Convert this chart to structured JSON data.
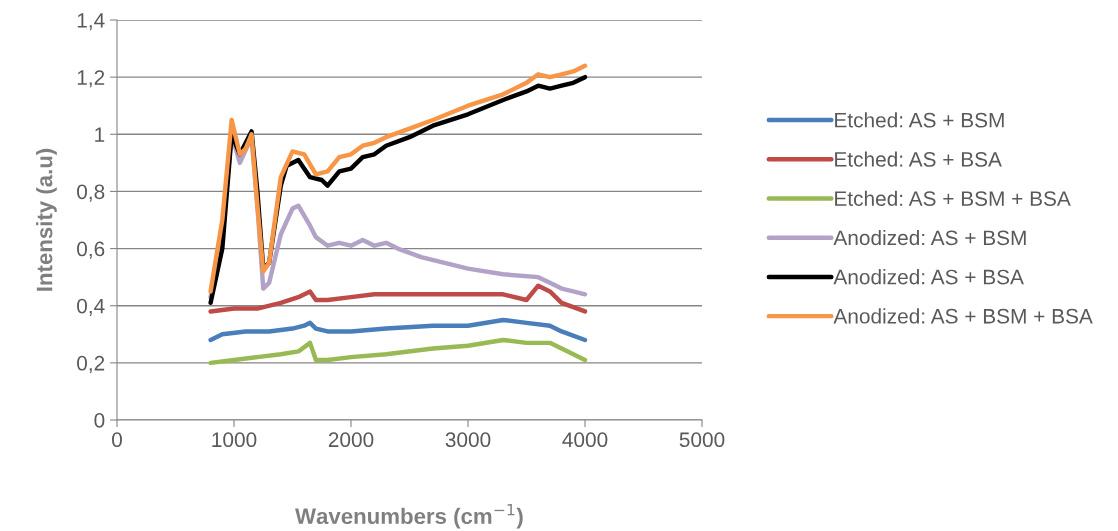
{
  "chart_data": {
    "type": "line",
    "xlabel": "Wavenumbers (cm$^{−1}$)",
    "ylabel": "Intensity (a.u)",
    "xlim": [
      0,
      5000
    ],
    "xticks": [
      0,
      1000,
      2000,
      3000,
      4000,
      5000
    ],
    "ylim": [
      0,
      1.4
    ],
    "yticks": [
      {
        "value": 0,
        "label": "0"
      },
      {
        "value": 0.2,
        "label": "0,2"
      },
      {
        "value": 0.4,
        "label": "0,4"
      },
      {
        "value": 0.6,
        "label": "0,6"
      },
      {
        "value": 0.8,
        "label": "0,8"
      },
      {
        "value": 1,
        "label": "1"
      },
      {
        "value": 1.2,
        "label": "1,2"
      },
      {
        "value": 1.4,
        "label": "1,4"
      }
    ],
    "grid": "y",
    "legend": "right",
    "marker": "none",
    "line_style": "solid",
    "series": [
      {
        "name": "Etched: AS + BSM",
        "color": "#4a7ebb",
        "x": [
          800,
          900,
          1100,
          1300,
          1500,
          1600,
          1650,
          1700,
          1800,
          2000,
          2300,
          2700,
          3000,
          3300,
          3500,
          3700,
          3800,
          4000
        ],
        "values": [
          0.28,
          0.3,
          0.31,
          0.31,
          0.32,
          0.33,
          0.34,
          0.32,
          0.31,
          0.31,
          0.32,
          0.33,
          0.33,
          0.35,
          0.34,
          0.33,
          0.31,
          0.28
        ]
      },
      {
        "name": "Etched: AS + BSA",
        "color": "#be4b48",
        "x": [
          800,
          1000,
          1200,
          1400,
          1550,
          1650,
          1700,
          1800,
          2000,
          2200,
          2500,
          3000,
          3300,
          3500,
          3600,
          3700,
          3800,
          4000
        ],
        "values": [
          0.38,
          0.39,
          0.39,
          0.41,
          0.43,
          0.45,
          0.42,
          0.42,
          0.43,
          0.44,
          0.44,
          0.44,
          0.44,
          0.42,
          0.47,
          0.45,
          0.41,
          0.38
        ]
      },
      {
        "name": "Etched: AS + BSM + BSA",
        "color": "#98b954",
        "x": [
          800,
          1000,
          1200,
          1400,
          1550,
          1650,
          1700,
          1800,
          2000,
          2300,
          2700,
          3000,
          3300,
          3500,
          3700,
          3800,
          4000
        ],
        "values": [
          0.2,
          0.21,
          0.22,
          0.23,
          0.24,
          0.27,
          0.21,
          0.21,
          0.22,
          0.23,
          0.25,
          0.26,
          0.28,
          0.27,
          0.27,
          0.25,
          0.21
        ]
      },
      {
        "name": "Anodized: AS + BSM",
        "color": "#b3a2c7",
        "x": [
          800,
          900,
          980,
          1050,
          1150,
          1200,
          1250,
          1300,
          1400,
          1500,
          1550,
          1650,
          1700,
          1800,
          1900,
          2000,
          2100,
          2200,
          2300,
          2400,
          2600,
          2800,
          3000,
          3300,
          3600,
          3700,
          3800,
          3900,
          4000
        ],
        "values": [
          0.43,
          0.65,
          1.0,
          0.9,
          0.99,
          0.75,
          0.46,
          0.48,
          0.65,
          0.74,
          0.75,
          0.68,
          0.64,
          0.61,
          0.62,
          0.61,
          0.63,
          0.61,
          0.62,
          0.6,
          0.57,
          0.55,
          0.53,
          0.51,
          0.5,
          0.48,
          0.46,
          0.45,
          0.44
        ]
      },
      {
        "name": "Anodized: AS + BSA",
        "color": "#000000",
        "x": [
          800,
          900,
          980,
          1050,
          1150,
          1200,
          1250,
          1300,
          1400,
          1450,
          1550,
          1650,
          1750,
          1800,
          1900,
          2000,
          2100,
          2200,
          2300,
          2500,
          2700,
          3000,
          3300,
          3500,
          3600,
          3700,
          3800,
          3900,
          4000
        ],
        "values": [
          0.41,
          0.6,
          1.0,
          0.93,
          1.01,
          0.8,
          0.53,
          0.55,
          0.82,
          0.89,
          0.91,
          0.85,
          0.84,
          0.82,
          0.87,
          0.88,
          0.92,
          0.93,
          0.96,
          0.99,
          1.03,
          1.07,
          1.12,
          1.15,
          1.17,
          1.16,
          1.17,
          1.18,
          1.2
        ]
      },
      {
        "name": "Anodized: AS + BSM + BSA",
        "color": "#f79646",
        "x": [
          800,
          900,
          980,
          1050,
          1100,
          1150,
          1200,
          1250,
          1300,
          1400,
          1500,
          1600,
          1700,
          1800,
          1900,
          2000,
          2100,
          2200,
          2300,
          2500,
          2700,
          3000,
          3300,
          3500,
          3600,
          3700,
          3800,
          3900,
          4000
        ],
        "values": [
          0.45,
          0.7,
          1.05,
          0.93,
          0.95,
          1.0,
          0.75,
          0.52,
          0.55,
          0.85,
          0.94,
          0.93,
          0.86,
          0.87,
          0.92,
          0.93,
          0.96,
          0.97,
          0.99,
          1.02,
          1.05,
          1.1,
          1.14,
          1.18,
          1.21,
          1.2,
          1.21,
          1.22,
          1.24
        ]
      }
    ]
  }
}
